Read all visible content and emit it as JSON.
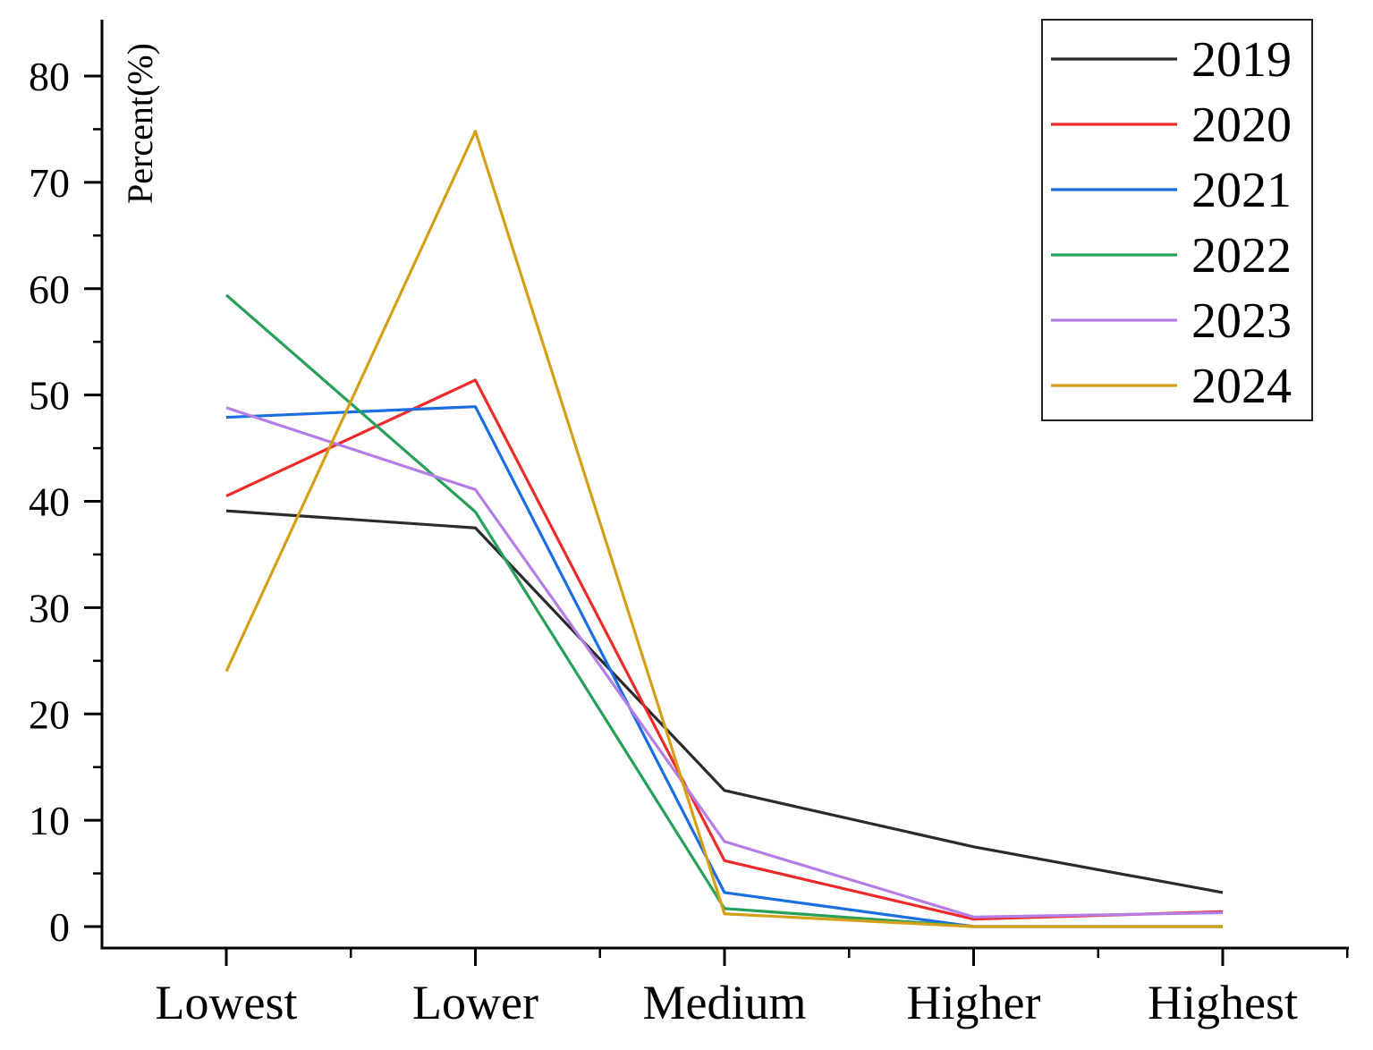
{
  "chart_data": {
    "type": "line",
    "title": "",
    "xlabel": "",
    "ylabel": "Percent(%)",
    "categories": [
      "Lowest",
      "Lower",
      "Medium",
      "Higher",
      "Highest"
    ],
    "ylim": [
      0,
      85
    ],
    "yticks": [
      0,
      10,
      20,
      30,
      40,
      50,
      60,
      70,
      80
    ],
    "grid": false,
    "legend_position": "top-right",
    "series": [
      {
        "name": "2019",
        "color": "#2b2b2b",
        "values": [
          39.1,
          37.5,
          12.8,
          7.5,
          3.2
        ]
      },
      {
        "name": "2020",
        "color": "#ee2b2b",
        "values": [
          40.5,
          51.4,
          6.2,
          0.7,
          1.4
        ]
      },
      {
        "name": "2021",
        "color": "#1a6fe0",
        "values": [
          47.9,
          48.9,
          3.2,
          0.0,
          0.0
        ]
      },
      {
        "name": "2022",
        "color": "#27a05a",
        "values": [
          59.4,
          39.0,
          1.7,
          0.0,
          0.0
        ]
      },
      {
        "name": "2023",
        "color": "#b57ee6",
        "values": [
          48.8,
          41.1,
          8.0,
          0.9,
          1.3
        ]
      },
      {
        "name": "2024",
        "color": "#d4a017",
        "values": [
          24.0,
          74.8,
          1.2,
          0.0,
          0.0
        ]
      }
    ]
  }
}
